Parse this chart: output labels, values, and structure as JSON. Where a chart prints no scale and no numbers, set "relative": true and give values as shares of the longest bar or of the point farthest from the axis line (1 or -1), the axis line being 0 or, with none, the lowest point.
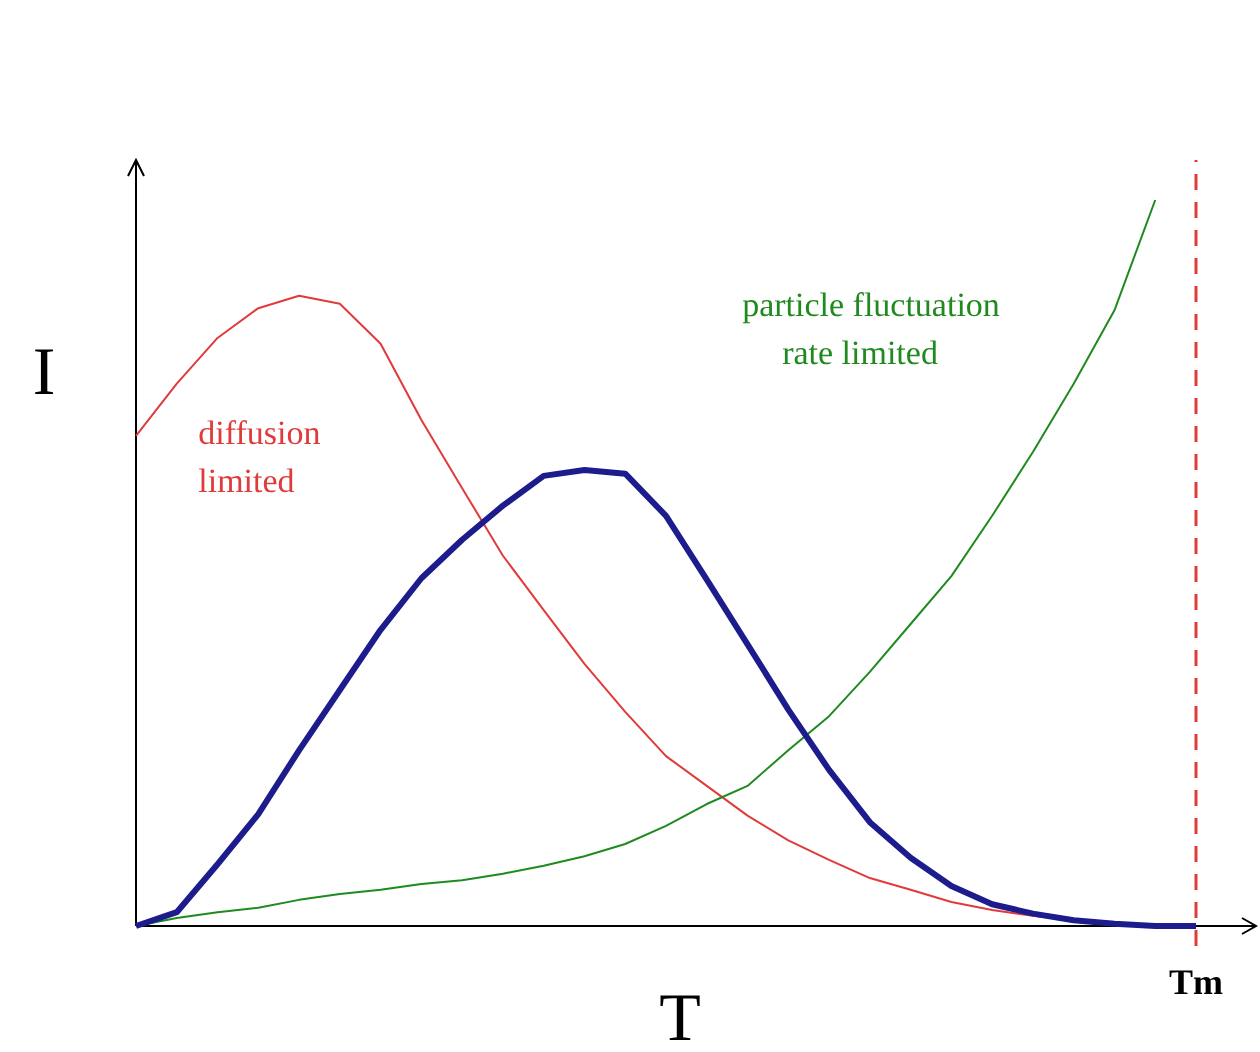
{
  "chart_data": {
    "type": "line",
    "relative": true,
    "xlabel": "T",
    "ylabel": "I",
    "marker": "none",
    "categories": [
      null,
      null,
      null,
      null,
      null,
      null,
      null,
      null,
      null,
      null,
      null,
      null,
      null,
      null,
      null,
      null,
      null,
      null,
      null,
      null,
      null,
      null,
      null,
      null,
      null,
      null,
      null
    ],
    "series": [
      {
        "name": "diffusion limited",
        "color": "#e03a3a",
        "values": [
          0.675,
          0.747,
          0.81,
          0.851,
          0.868,
          0.857,
          0.802,
          0.697,
          0.603,
          0.51,
          0.435,
          0.361,
          0.295,
          0.234,
          0.193,
          0.152,
          0.118,
          0.091,
          0.066,
          0.05,
          0.033,
          0.022,
          0.014,
          0.008,
          0.003,
          0,
          0
        ]
      },
      {
        "name": "particle fluctuation rate limited",
        "color": "#1f8a1f",
        "values": [
          0,
          0.011,
          0.019,
          0.025,
          0.036,
          0.044,
          0.05,
          0.058,
          0.063,
          0.072,
          0.083,
          0.096,
          0.113,
          0.138,
          0.168,
          0.193,
          0.242,
          0.289,
          0.35,
          0.416,
          0.482,
          0.565,
          0.653,
          0.747,
          0.848,
          1,
          null
        ]
      },
      {
        "color": "#1c1c8c",
        "values": [
          0,
          0.019,
          0.085,
          0.154,
          0.242,
          0.325,
          0.408,
          0.479,
          0.532,
          0.579,
          0.62,
          0.628,
          0.623,
          0.565,
          0.477,
          0.388,
          0.298,
          0.215,
          0.143,
          0.094,
          0.055,
          0.03,
          0.017,
          0.008,
          0.003,
          0,
          0
        ]
      }
    ],
    "ref_lines": [
      {
        "axis": "x",
        "label": "Tm",
        "color": "#e03a3a",
        "line_style": "dashed"
      }
    ]
  }
}
